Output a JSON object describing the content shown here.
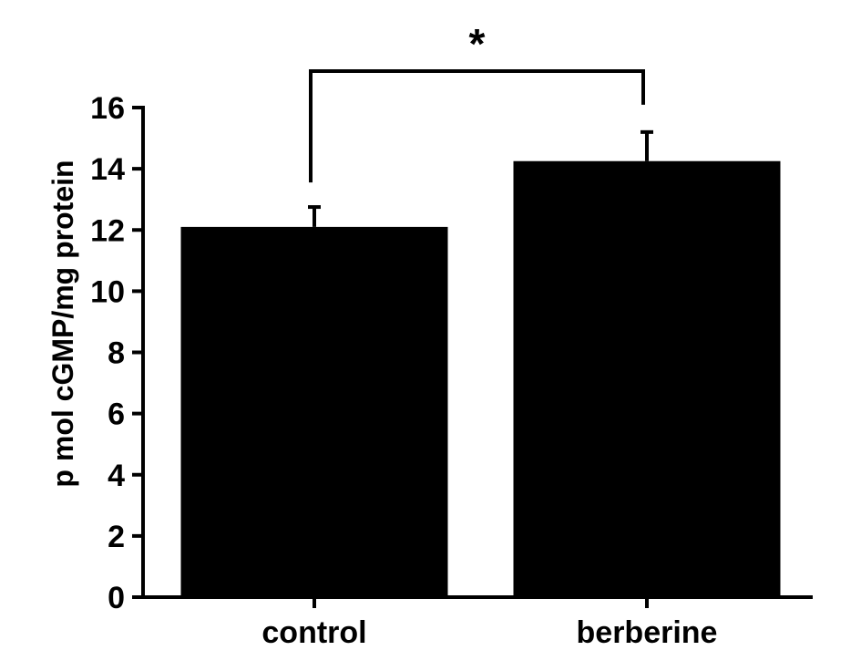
{
  "chart_data": {
    "type": "bar",
    "categories": [
      "control",
      "berberine"
    ],
    "values": [
      12.1,
      14.25
    ],
    "errors": [
      0.65,
      0.95
    ],
    "ylabel": "p mol cGMP/mg protein",
    "ylim": [
      0,
      16
    ],
    "yticks": [
      0,
      2,
      4,
      6,
      8,
      10,
      12,
      14,
      16
    ],
    "significance": {
      "label": "*",
      "between": [
        "control",
        "berberine"
      ]
    },
    "colors": {
      "bar": "#000000",
      "axis": "#000000"
    },
    "grid": false
  }
}
